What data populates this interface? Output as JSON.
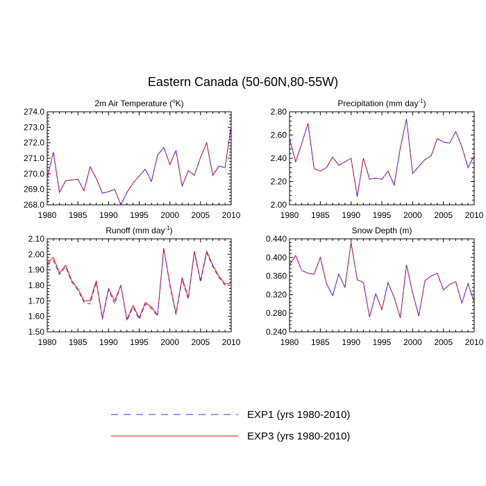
{
  "figure": {
    "title": "Eastern Canada (50-60N,80-55W)",
    "colors": {
      "exp1": "#3333ff",
      "exp3": "#ff0000",
      "axis": "#000000"
    },
    "legend": [
      {
        "key": "exp1",
        "label": "EXP1 (yrs 1980-2010)",
        "style": "dashed"
      },
      {
        "key": "exp3",
        "label": "EXP3 (yrs 1980-2010)",
        "style": "solid"
      }
    ]
  },
  "chart_data": [
    {
      "type": "line",
      "title": "2m Air Temperature (°K)",
      "title_main": "2m Air Temperature (",
      "title_super": "o",
      "title_end": "K)",
      "x": [
        1980,
        1981,
        1982,
        1983,
        1984,
        1985,
        1986,
        1987,
        1988,
        1989,
        1990,
        1991,
        1992,
        1993,
        1994,
        1995,
        1996,
        1997,
        1998,
        1999,
        2000,
        2001,
        2002,
        2003,
        2004,
        2005,
        2006,
        2007,
        2008,
        2009,
        2010
      ],
      "xlim": [
        1980,
        2010
      ],
      "xticks": [
        "1980",
        "1985",
        "1990",
        "1995",
        "2000",
        "2005",
        "2010"
      ],
      "ylim": [
        268.0,
        274.0
      ],
      "yticks": [
        "268.0",
        "269.0",
        "270.0",
        "271.0",
        "272.0",
        "273.0",
        "274.0"
      ],
      "series": [
        {
          "name": "EXP1",
          "values": [
            269.7,
            271.4,
            268.8,
            269.55,
            269.6,
            269.65,
            268.9,
            270.45,
            269.7,
            268.75,
            268.85,
            269.0,
            268.0,
            268.8,
            269.4,
            269.85,
            270.3,
            269.5,
            271.2,
            271.7,
            270.6,
            271.5,
            269.2,
            270.2,
            269.9,
            271.05,
            272.0,
            269.9,
            270.5,
            270.4,
            273.1
          ]
        },
        {
          "name": "EXP3",
          "values": [
            269.7,
            271.4,
            268.8,
            269.55,
            269.6,
            269.65,
            268.9,
            270.45,
            269.7,
            268.75,
            268.85,
            269.0,
            268.0,
            268.8,
            269.4,
            269.85,
            270.3,
            269.5,
            271.2,
            271.7,
            270.6,
            271.5,
            269.2,
            270.2,
            269.9,
            271.05,
            272.0,
            269.9,
            270.5,
            270.4,
            273.1
          ]
        }
      ]
    },
    {
      "type": "line",
      "title": "Precipitation (mm day-1)",
      "title_main": "Precipitation (mm day",
      "title_super": "-1",
      "title_end": ")",
      "x": [
        1980,
        1981,
        1982,
        1983,
        1984,
        1985,
        1986,
        1987,
        1988,
        1989,
        1990,
        1991,
        1992,
        1993,
        1994,
        1995,
        1996,
        1997,
        1998,
        1999,
        2000,
        2001,
        2002,
        2003,
        2004,
        2005,
        2006,
        2007,
        2008,
        2009,
        2010
      ],
      "xlim": [
        1980,
        2010
      ],
      "xticks": [
        "1980",
        "1985",
        "1990",
        "1995",
        "2000",
        "2005",
        "2010"
      ],
      "ylim": [
        2.0,
        2.8
      ],
      "yticks": [
        "2.00",
        "2.20",
        "2.40",
        "2.60",
        "2.80"
      ],
      "series": [
        {
          "name": "EXP1",
          "values": [
            2.57,
            2.37,
            2.53,
            2.7,
            2.31,
            2.29,
            2.32,
            2.41,
            2.34,
            2.37,
            2.4,
            2.07,
            2.4,
            2.22,
            2.23,
            2.22,
            2.29,
            2.17,
            2.49,
            2.74,
            2.27,
            2.33,
            2.39,
            2.42,
            2.57,
            2.54,
            2.53,
            2.63,
            2.5,
            2.32,
            2.42
          ]
        },
        {
          "name": "EXP3",
          "values": [
            2.57,
            2.37,
            2.53,
            2.7,
            2.31,
            2.29,
            2.32,
            2.41,
            2.34,
            2.37,
            2.4,
            2.07,
            2.4,
            2.22,
            2.23,
            2.22,
            2.29,
            2.17,
            2.49,
            2.74,
            2.27,
            2.33,
            2.39,
            2.42,
            2.57,
            2.54,
            2.53,
            2.63,
            2.5,
            2.32,
            2.42
          ]
        }
      ]
    },
    {
      "type": "line",
      "title": "Runoff (mm day-1)",
      "title_main": "Runoff (mm day",
      "title_super": "-1",
      "title_end": ")",
      "x": [
        1980,
        1981,
        1982,
        1983,
        1984,
        1985,
        1986,
        1987,
        1988,
        1989,
        1990,
        1991,
        1992,
        1993,
        1994,
        1995,
        1996,
        1997,
        1998,
        1999,
        2000,
        2001,
        2002,
        2003,
        2004,
        2005,
        2006,
        2007,
        2008,
        2009,
        2010
      ],
      "xlim": [
        1980,
        2010
      ],
      "xticks": [
        "1980",
        "1985",
        "1990",
        "1995",
        "2000",
        "2005",
        "2010"
      ],
      "ylim": [
        1.5,
        2.1
      ],
      "yticks": [
        "1.50",
        "1.60",
        "1.70",
        "1.80",
        "1.90",
        "2.00",
        "2.10"
      ],
      "series": [
        {
          "name": "EXP1",
          "values": [
            1.93,
            1.96,
            1.87,
            1.92,
            1.82,
            1.77,
            1.69,
            1.68,
            1.82,
            1.58,
            1.77,
            1.68,
            1.8,
            1.57,
            1.66,
            1.58,
            1.68,
            1.65,
            1.6,
            2.04,
            1.8,
            1.61,
            1.84,
            1.71,
            2.01,
            1.82,
            2.01,
            1.92,
            1.85,
            1.8,
            1.8
          ]
        },
        {
          "name": "EXP3",
          "values": [
            1.94,
            1.98,
            1.88,
            1.93,
            1.83,
            1.78,
            1.7,
            1.7,
            1.83,
            1.59,
            1.78,
            1.7,
            1.8,
            1.58,
            1.67,
            1.59,
            1.69,
            1.66,
            1.61,
            2.04,
            1.81,
            1.62,
            1.85,
            1.72,
            2.02,
            1.83,
            2.02,
            1.93,
            1.86,
            1.81,
            1.81
          ]
        }
      ]
    },
    {
      "type": "line",
      "title": "Snow Depth (m)",
      "title_main": "Snow Depth (m)",
      "title_super": "",
      "title_end": "",
      "x": [
        1980,
        1981,
        1982,
        1983,
        1984,
        1985,
        1986,
        1987,
        1988,
        1989,
        1990,
        1991,
        1992,
        1993,
        1994,
        1995,
        1996,
        1997,
        1998,
        1999,
        2000,
        2001,
        2002,
        2003,
        2004,
        2005,
        2006,
        2007,
        2008,
        2009,
        2010
      ],
      "xlim": [
        1980,
        2010
      ],
      "xticks": [
        "1980",
        "1985",
        "1990",
        "1995",
        "2000",
        "2005",
        "2010"
      ],
      "ylim": [
        0.24,
        0.44
      ],
      "yticks": [
        "0.240",
        "0.280",
        "0.320",
        "0.360",
        "0.400",
        "0.440"
      ],
      "series": [
        {
          "name": "EXP1",
          "values": [
            0.384,
            0.404,
            0.372,
            0.366,
            0.364,
            0.4,
            0.344,
            0.318,
            0.364,
            0.336,
            0.432,
            0.352,
            0.346,
            0.272,
            0.322,
            0.288,
            0.346,
            0.314,
            0.27,
            0.384,
            0.324,
            0.274,
            0.35,
            0.36,
            0.366,
            0.33,
            0.342,
            0.348,
            0.302,
            0.344,
            0.304
          ]
        },
        {
          "name": "EXP3",
          "values": [
            0.384,
            0.404,
            0.372,
            0.366,
            0.364,
            0.4,
            0.344,
            0.318,
            0.364,
            0.336,
            0.432,
            0.352,
            0.346,
            0.272,
            0.322,
            0.288,
            0.346,
            0.314,
            0.27,
            0.384,
            0.324,
            0.274,
            0.35,
            0.36,
            0.366,
            0.33,
            0.342,
            0.348,
            0.302,
            0.344,
            0.304
          ]
        }
      ]
    }
  ]
}
